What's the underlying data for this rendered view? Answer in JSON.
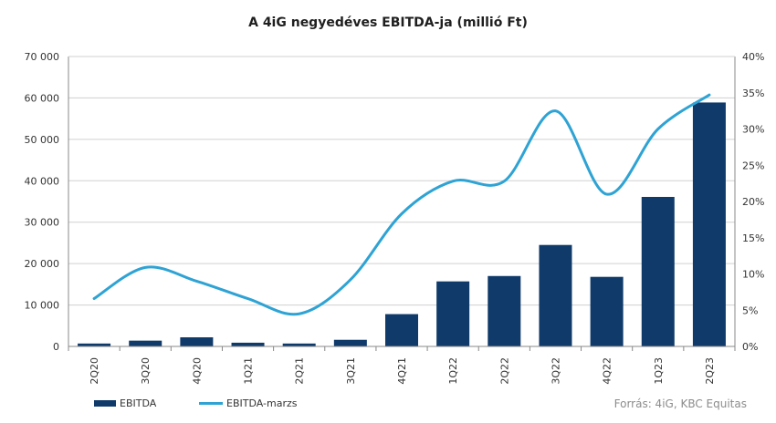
{
  "title": "A 4iG negyedéves EBITDA-ja (millió Ft)",
  "source": "Forrás: 4iG, KBC Equitas",
  "colors": {
    "bar": "#0f3a6a",
    "line": "#2ea3d4",
    "axis": "#888888"
  },
  "chart_data": {
    "type": "bar",
    "title": "A 4iG negyedéves EBITDA-ja (millió Ft)",
    "categories": [
      "2Q20",
      "3Q20",
      "4Q20",
      "1Q21",
      "2Q21",
      "3Q21",
      "4Q21",
      "1Q22",
      "2Q22",
      "3Q22",
      "4Q22",
      "1Q23",
      "2Q23"
    ],
    "series": [
      {
        "name": "EBITDA",
        "type": "bar",
        "axis": "left",
        "values": [
          700,
          1400,
          2200,
          900,
          700,
          1600,
          7800,
          15700,
          17000,
          24500,
          16800,
          36100,
          58900
        ]
      },
      {
        "name": "EBITDA-marzs",
        "type": "line",
        "axis": "right",
        "smooth": true,
        "values": [
          0.066,
          0.109,
          0.09,
          0.066,
          0.045,
          0.092,
          0.183,
          0.228,
          0.228,
          0.325,
          0.21,
          0.3,
          0.347
        ]
      }
    ],
    "ylim": [
      0,
      70000
    ],
    "y_ticks": [
      "0",
      "10 000",
      "20 000",
      "30 000",
      "40 000",
      "50 000",
      "60 000",
      "70 000"
    ],
    "y2lim": [
      0,
      0.4
    ],
    "y2_ticks": [
      "0%",
      "5%",
      "10%",
      "15%",
      "20%",
      "25%",
      "30%",
      "35%",
      "40%"
    ],
    "grid": true,
    "legend": "bottom-left"
  }
}
